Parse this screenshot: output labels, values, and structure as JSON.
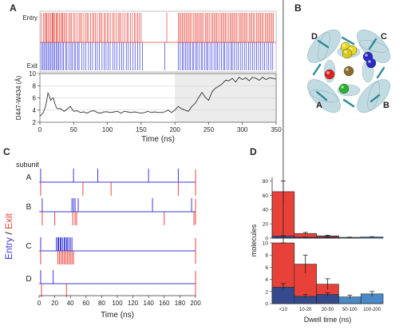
{
  "panel_labels": {
    "A": "A",
    "B": "B",
    "C": "C",
    "D": "D"
  },
  "chart_data": [
    {
      "panel": "A",
      "type": "line",
      "raster": {
        "labels": {
          "entry": "Entry",
          "exit": "Exit"
        },
        "colors": {
          "entry": "#e8463c",
          "exit": "#3a3ade"
        },
        "entry_times": [
          2,
          5,
          7,
          9,
          10,
          12,
          14,
          16,
          18,
          19,
          20,
          22,
          24,
          25,
          27,
          29,
          31,
          33,
          34,
          36,
          38,
          40,
          43,
          45,
          47,
          50,
          52,
          55,
          58,
          60,
          62,
          65,
          68,
          70,
          72,
          75,
          78,
          80,
          82,
          85,
          88,
          90,
          92,
          95,
          97,
          100,
          102,
          105,
          108,
          110,
          113,
          116,
          118,
          120,
          123,
          126,
          129,
          131,
          134,
          137,
          140,
          142,
          145,
          147,
          150,
          188,
          205,
          207,
          209,
          211,
          213,
          215,
          217,
          219,
          221,
          223,
          225,
          228,
          230,
          232,
          234,
          236,
          238,
          240,
          242,
          245,
          247,
          249,
          251,
          254,
          256,
          258,
          260,
          262,
          264,
          267,
          269,
          271,
          273,
          275,
          277,
          280,
          282,
          284,
          286,
          288,
          290,
          292,
          295,
          297,
          299,
          301,
          303,
          305,
          307,
          310,
          312,
          314,
          316,
          318,
          321,
          323,
          325,
          327,
          329,
          331,
          334,
          336,
          338,
          340,
          342,
          344,
          346
        ],
        "exit_times": [
          2,
          4,
          6,
          8,
          10,
          12,
          14,
          16,
          18,
          20,
          22,
          24,
          26,
          28,
          30,
          33,
          35,
          38,
          40,
          43,
          46,
          48,
          51,
          53,
          56,
          58,
          62,
          65,
          68,
          72,
          75,
          78,
          82,
          85,
          88,
          92,
          95,
          98,
          101,
          104,
          108,
          111,
          114,
          118,
          121,
          124,
          128,
          131,
          134,
          138,
          141,
          145,
          148,
          152,
          185,
          205,
          208,
          211,
          213,
          216,
          218,
          221,
          223,
          226,
          228,
          231,
          233,
          236,
          239,
          241,
          244,
          247,
          249,
          252,
          255,
          258,
          261,
          263,
          266,
          269,
          272,
          274,
          277,
          280,
          283,
          285,
          288,
          291,
          294,
          297,
          300,
          303,
          306,
          309,
          312,
          315,
          318,
          321,
          324,
          327,
          330,
          333,
          336,
          339,
          342,
          345
        ]
      },
      "series": [
        {
          "x": [
            0,
            3,
            5,
            8,
            10,
            12,
            14,
            16,
            18,
            20,
            22,
            25,
            28,
            30,
            33,
            36,
            40,
            45,
            50,
            55,
            60,
            65,
            70,
            75,
            80,
            85,
            90,
            95,
            100,
            105,
            110,
            115,
            120,
            125,
            130,
            135,
            140,
            145,
            150,
            155,
            160,
            165,
            170,
            175,
            180,
            185,
            190,
            195,
            200,
            205,
            210,
            215,
            220,
            225,
            230,
            235,
            240,
            245,
            250,
            255,
            260,
            265,
            270,
            275,
            280,
            285,
            290,
            295,
            300,
            305,
            310,
            315,
            320,
            325,
            330,
            335,
            340,
            345,
            350
          ],
          "y": [
            3,
            3.3,
            3.6,
            4.5,
            5.5,
            6.8,
            6.3,
            5.6,
            5.9,
            6.0,
            5.1,
            4.3,
            4.2,
            4.3,
            4.0,
            3.8,
            4.1,
            4.6,
            3.8,
            3.9,
            3.6,
            3.7,
            3.5,
            3.8,
            3.9,
            3.6,
            3.5,
            3.7,
            3.7,
            3.6,
            3.7,
            3.8,
            3.5,
            3.8,
            3.7,
            3.6,
            3.7,
            3.6,
            3.5,
            3.6,
            3.8,
            3.6,
            3.7,
            3.6,
            3.6,
            3.7,
            4.0,
            3.6,
            4.0,
            4.6,
            4.2,
            4.0,
            3.8,
            4.6,
            5.1,
            6.0,
            6.9,
            6.1,
            5.6,
            7.0,
            7.6,
            7.9,
            8.3,
            8.9,
            8.8,
            9.2,
            8.6,
            9.4,
            9.0,
            9.3,
            8.8,
            9.4,
            9.2,
            8.9,
            9.4,
            9.0,
            9.3,
            9.2,
            9.1
          ]
        }
      ],
      "ylabel": "D447-W434 (Å)",
      "xlabel": "Time (ns)",
      "x_ticks": [
        0,
        50,
        100,
        150,
        200,
        250,
        300,
        350
      ],
      "y_ticks": [
        2,
        4,
        6,
        8,
        10
      ],
      "xlim": [
        0,
        350
      ],
      "ylim": [
        2,
        10
      ],
      "grid": "horizontal",
      "shaded_region": [
        200,
        350
      ]
    },
    {
      "panel": "C",
      "type": "scatter",
      "header": "subunit",
      "ylabel_parts": {
        "entry": "Entry",
        "sep": " / ",
        "exit": "Exit"
      },
      "xlabel": "Time (ns)",
      "x_ticks": [
        0,
        20,
        40,
        60,
        80,
        100,
        120,
        140,
        160,
        180,
        200
      ],
      "xlim": [
        0,
        200
      ],
      "colors": {
        "entry": "#3a3ade",
        "exit": "#e8463c"
      },
      "subunits": [
        {
          "name": "A",
          "entry": [
            2,
            44,
            75,
            140,
            178
          ],
          "exit": [
            2,
            56,
            92,
            178,
            200
          ]
        },
        {
          "name": "B",
          "entry": [
            4,
            42,
            44,
            46,
            50,
            145,
            195
          ],
          "exit": [
            4,
            20,
            43,
            46,
            48,
            160,
            198
          ]
        },
        {
          "name": "C",
          "entry": [
            2,
            22,
            24,
            25,
            27,
            28,
            30,
            32,
            33,
            35,
            36,
            38,
            40,
            42
          ],
          "exit": [
            2,
            24,
            26,
            28,
            30,
            32,
            34,
            36,
            38,
            40,
            42,
            44
          ]
        },
        {
          "name": "D",
          "entry": [
            2,
            18
          ],
          "exit": [
            3,
            35
          ]
        }
      ]
    },
    {
      "panel": "D",
      "type": "bar",
      "categories": [
        "<10",
        "10-20",
        "20-50",
        "50-100",
        "100-200"
      ],
      "series": [
        {
          "values": [
            65,
            6.5,
            3.2,
            1.6,
            1.8
          ],
          "errors": [
            15,
            1.5,
            0.9,
            0.5,
            0.4
          ]
        },
        {
          "values": [
            2.7,
            1.2,
            1.5,
            1.1,
            1.6
          ],
          "errors": [
            0.6,
            0.3,
            0.3,
            0.3,
            0.4
          ]
        }
      ],
      "colors": [
        "#e8413a",
        "#344a8c",
        "#4a89c7"
      ],
      "xlabel": "Dwell time (ns)",
      "ylabel": "molecules",
      "top_axis": {
        "ylim": [
          0,
          85
        ],
        "y_ticks": [
          0,
          20,
          40,
          60,
          80
        ]
      },
      "bottom_axis": {
        "ylim": [
          0,
          10
        ],
        "y_ticks": [
          0,
          2,
          4,
          6,
          8,
          10
        ]
      }
    }
  ],
  "structure": {
    "subunit_labels": [
      "A",
      "B",
      "C",
      "D"
    ],
    "colors": {
      "ribbon": "#b8d5dd",
      "ribbon_edge": "#8fb4bd",
      "stick": "#2a8a96",
      "red": "#e02020",
      "blue": "#2a2ac8",
      "yellow": "#e8d820",
      "green": "#2ab02a",
      "brown": "#8a6a30"
    }
  }
}
